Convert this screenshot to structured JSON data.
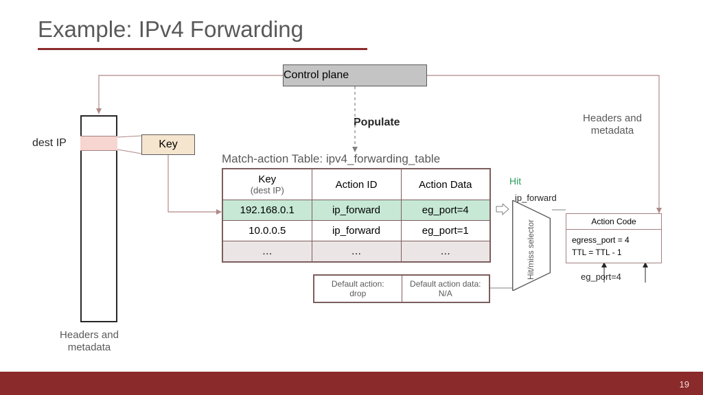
{
  "slide": {
    "title": "Example: IPv4 Forwarding",
    "page_number": "19"
  },
  "colors": {
    "dark_red": "#8b2a2a",
    "gray_text": "#595959",
    "black": "#262626",
    "control_bg": "#c4c4c4",
    "destip_band": "#f7d5d0",
    "key_bg": "#f5e5ce",
    "hit_row": "#c6e8d5",
    "dots_row": "#ece5e5",
    "table_border": "#7b5d5d",
    "hit_green": "#2a9d5a"
  },
  "labels": {
    "control_plane": "Control plane",
    "populate": "Populate",
    "headers_metadata": "Headers and metadata",
    "dest_ip": "dest IP",
    "key": "Key",
    "table_title": "Match-action Table: ipv4_forwarding_table",
    "hit": "Hit",
    "ip_forward": "ip_forward",
    "hm_selector": "Hit/miss selector",
    "eg_port": "eg_port=4",
    "action_code": "Action Code"
  },
  "match_table": {
    "columns": [
      {
        "label": "Key",
        "sub": "(dest IP)",
        "width": 130
      },
      {
        "label": "Action ID",
        "sub": "",
        "width": 130
      },
      {
        "label": "Action Data",
        "sub": "",
        "width": 130
      }
    ],
    "rows": [
      {
        "class": "row-hit",
        "cells": [
          "192.168.0.1",
          "ip_forward",
          "eg_port=4"
        ]
      },
      {
        "class": "",
        "cells": [
          "10.0.0.5",
          "ip_forward",
          "eg_port=1"
        ]
      },
      {
        "class": "row-dots",
        "cells": [
          "…",
          "…",
          "…"
        ]
      }
    ]
  },
  "default_action": {
    "cells": [
      "Default action: drop",
      "Default action data: N/A"
    ]
  },
  "action_code_body": [
    "egress_port = 4",
    "TTL = TTL - 1"
  ]
}
